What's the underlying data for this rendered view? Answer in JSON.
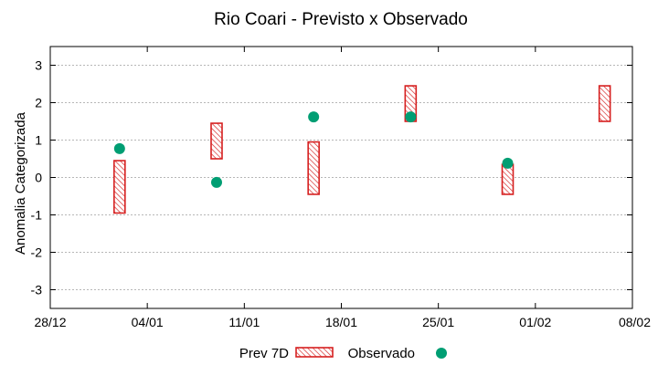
{
  "chart_data": {
    "type": "scatter",
    "title": "Rio Coari - Previsto x Observado",
    "xlabel": "",
    "ylabel": "Anomalia Categorizada",
    "xlim": [
      "2023-12-28",
      "2024-02-08"
    ],
    "ylim": [
      -3.5,
      3.5
    ],
    "y_ticks": [
      -3,
      -2,
      -1,
      0,
      1,
      2,
      3
    ],
    "y_tick_labels": [
      "-3",
      "-2",
      "-1",
      "0",
      "1",
      "2",
      "3"
    ],
    "x_ticks": [
      "2023-12-28",
      "2024-01-04",
      "2024-01-11",
      "2024-01-18",
      "2024-01-25",
      "2024-02-01",
      "2024-02-08"
    ],
    "x_tick_labels": [
      "28/12",
      "04/01",
      "11/01",
      "18/01",
      "25/01",
      "01/02",
      "08/02"
    ],
    "grid": true,
    "legend_position": "bottom",
    "series": [
      {
        "name": "Prev 7D",
        "kind": "range",
        "color": "#d62020",
        "points": [
          {
            "date": "2024-01-02",
            "low": -0.95,
            "high": 0.45
          },
          {
            "date": "2024-01-09",
            "low": 0.5,
            "high": 1.45
          },
          {
            "date": "2024-01-16",
            "low": -0.45,
            "high": 0.95
          },
          {
            "date": "2024-01-23",
            "low": 1.5,
            "high": 2.45
          },
          {
            "date": "2024-01-30",
            "low": -0.45,
            "high": 0.35
          },
          {
            "date": "2024-02-06",
            "low": 1.5,
            "high": 2.45
          }
        ]
      },
      {
        "name": "Observado",
        "kind": "point",
        "color": "#009e73",
        "points": [
          {
            "date": "2024-01-02",
            "value": 0.77
          },
          {
            "date": "2024-01-09",
            "value": -0.13
          },
          {
            "date": "2024-01-16",
            "value": 1.62
          },
          {
            "date": "2024-01-23",
            "value": 1.62
          },
          {
            "date": "2024-01-30",
            "value": 0.38
          }
        ]
      }
    ]
  }
}
